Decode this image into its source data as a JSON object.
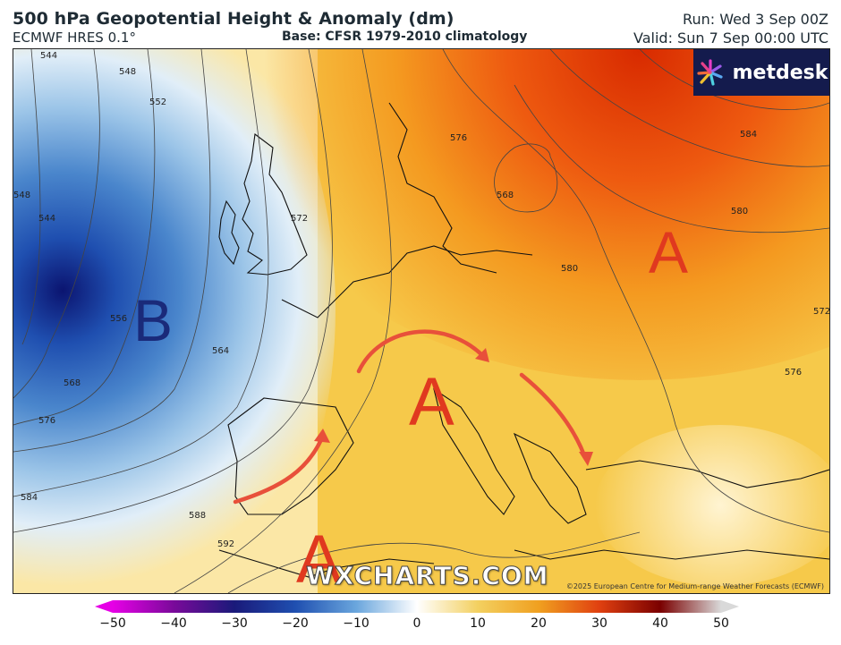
{
  "header": {
    "title": "500 hPa Geopotential Height & Anomaly (dm)",
    "model": "ECMWF HRES 0.1°",
    "base": "Base: CFSR 1979-2010 climatology",
    "run": "Run: Wed 3 Sep 00Z",
    "valid": "Valid: Sun 7 Sep 00:00 UTC"
  },
  "logo": {
    "text": "metdesk"
  },
  "map": {
    "low_label": "B",
    "high_labels": [
      "A",
      "A",
      "A"
    ],
    "contour_labels": [
      "544",
      "548",
      "552",
      "544",
      "548",
      "556",
      "564",
      "568",
      "576",
      "584",
      "572",
      "576",
      "580",
      "584",
      "568",
      "580",
      "588",
      "592",
      "572",
      "576"
    ],
    "watermark": "WXCHARTS.COM",
    "copyright": "©2025 European Centre for Medium-range Weather Forecasts (ECMWF)"
  },
  "colorbar": {
    "ticks": [
      "−50",
      "−40",
      "−30",
      "−20",
      "−10",
      "0",
      "10",
      "20",
      "30",
      "40",
      "50"
    ],
    "colors": [
      "#e600e6",
      "#7a0a9a",
      "#1a1a7a",
      "#1f4fb0",
      "#6aa6dd",
      "#ffffff",
      "#f3d060",
      "#f0a020",
      "#e04010",
      "#7a0000",
      "#d9d9d9"
    ]
  }
}
